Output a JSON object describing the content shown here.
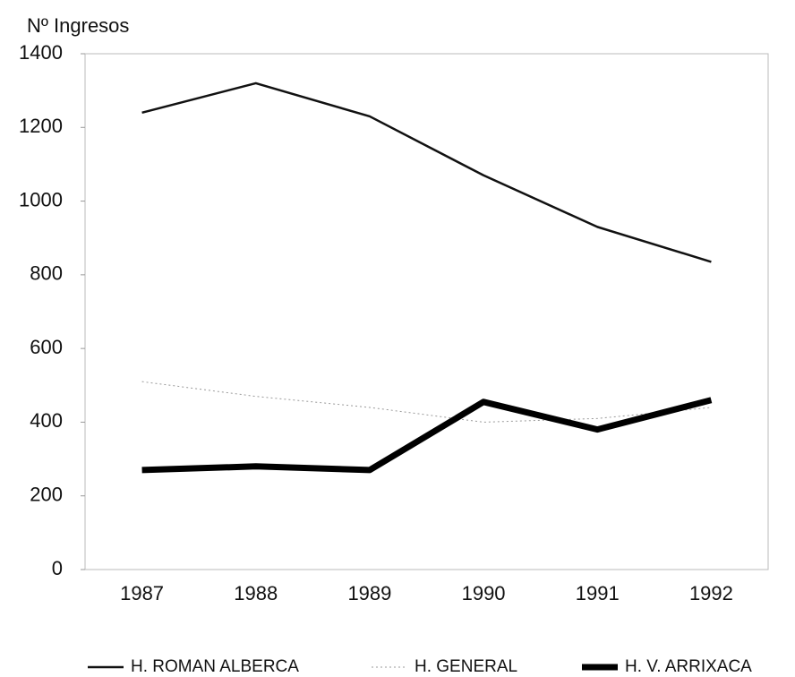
{
  "chart_data": {
    "type": "line",
    "y_label": "Nº Ingresos",
    "categories": [
      "1987",
      "1988",
      "1989",
      "1990",
      "1991",
      "1992"
    ],
    "series": [
      {
        "name": "H. ROMAN ALBERCA",
        "color": "#111111",
        "width": 2.5,
        "dash": "none",
        "values": [
          1240,
          1320,
          1230,
          1070,
          930,
          835
        ]
      },
      {
        "name": "H. GENERAL",
        "color": "#999999",
        "width": 1,
        "dash": "2 3",
        "values": [
          510,
          470,
          440,
          400,
          410,
          440
        ]
      },
      {
        "name": "H. V. ARRIXACA",
        "color": "#000000",
        "width": 7,
        "dash": "none",
        "values": [
          270,
          280,
          270,
          455,
          380,
          460
        ]
      }
    ],
    "ylim": [
      0,
      1400
    ],
    "yticks": [
      0,
      200,
      400,
      600,
      800,
      1000,
      1200,
      1400
    ],
    "grid": false,
    "legend": "bottom"
  }
}
